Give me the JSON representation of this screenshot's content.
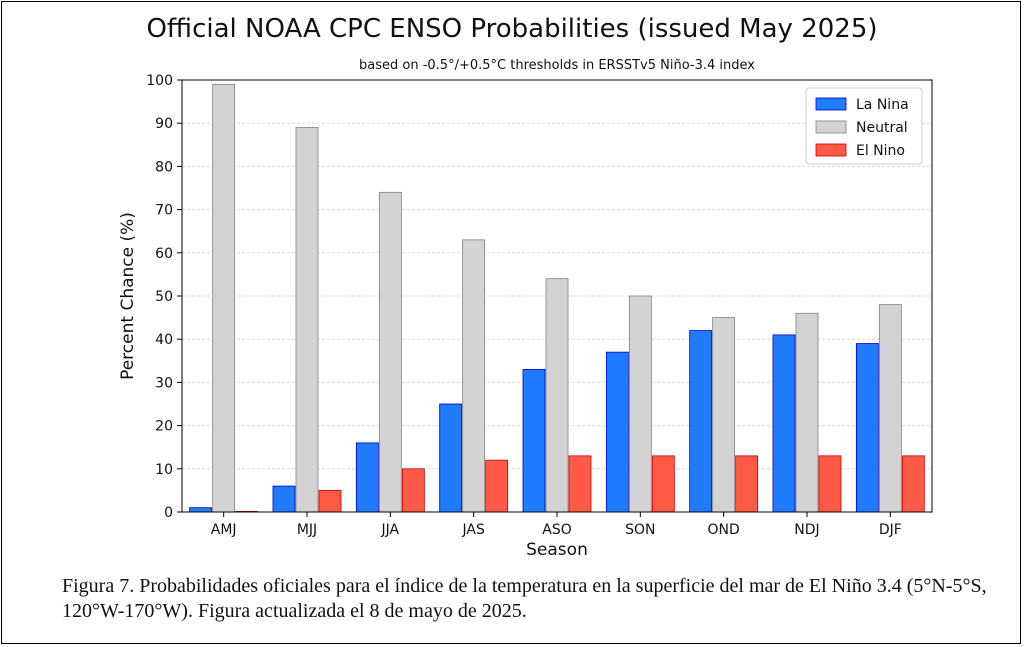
{
  "chart_data": {
    "type": "bar",
    "title": "Official NOAA CPC ENSO Probabilities (issued May 2025)",
    "subtitle": "based on -0.5°/+0.5°C thresholds in ERSSTv5 Niño-3.4 index",
    "xlabel": "Season",
    "ylabel": "Percent Chance (%)",
    "ylim": [
      0,
      100
    ],
    "yticks": [
      "0",
      "10",
      "20",
      "30",
      "40",
      "50",
      "60",
      "70",
      "80",
      "90",
      "100"
    ],
    "grid": "horizontal",
    "legend_position": "top-right",
    "categories": [
      "AMJ",
      "MJJ",
      "JJA",
      "JAS",
      "ASO",
      "SON",
      "OND",
      "NDJ",
      "DJF"
    ],
    "series": [
      {
        "name": "La Nina",
        "color": "#1f7bff",
        "edge": "#0000cc",
        "values": [
          1,
          6,
          16,
          25,
          33,
          37,
          42,
          41,
          39
        ]
      },
      {
        "name": "Neutral",
        "color": "#d3d3d3",
        "edge": "#808080",
        "values": [
          99,
          89,
          74,
          63,
          54,
          50,
          45,
          46,
          48
        ]
      },
      {
        "name": "El Nino",
        "color": "#ff5a45",
        "edge": "#cc0000",
        "values": [
          0,
          5,
          10,
          12,
          13,
          13,
          13,
          13,
          13
        ]
      }
    ]
  },
  "caption": "Figura 7. Probabilidades oficiales para el índice de la temperatura en la superficie del mar de El Niño 3.4 (5°N-5°S, 120°W-170°W). Figura actualizada el 8 de mayo de 2025."
}
